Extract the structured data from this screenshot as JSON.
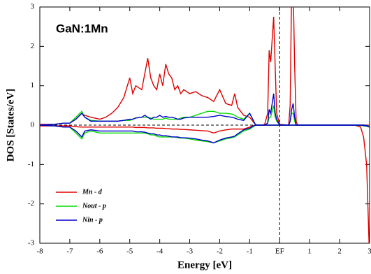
{
  "chart_data": {
    "type": "line",
    "annotation": "GaN:1Mn",
    "xlabel": "Energy [eV]",
    "ylabel": "DOS [States/eV]",
    "x": [
      -8,
      -7.5,
      -7.2,
      -7,
      -6.8,
      -6.6,
      -6.5,
      -6.3,
      -6,
      -5.8,
      -5.6,
      -5.4,
      -5.2,
      -5,
      -4.9,
      -4.8,
      -4.6,
      -4.5,
      -4.4,
      -4.3,
      -4.2,
      -4.1,
      -4,
      -3.9,
      -3.8,
      -3.7,
      -3.6,
      -3.5,
      -3.4,
      -3.3,
      -3.2,
      -3,
      -2.8,
      -2.6,
      -2.4,
      -2.2,
      -2,
      -1.8,
      -1.6,
      -1.5,
      -1.4,
      -1.2,
      -1,
      -0.9,
      -0.8,
      -0.6,
      -0.5,
      -0.4,
      -0.35,
      -0.3,
      -0.2,
      -0.15,
      -0.1,
      0,
      0.3,
      0.35,
      0.4,
      0.45,
      0.5,
      0.55,
      0.6,
      1,
      2,
      2.5,
      2.7,
      2.8,
      2.9,
      2.95,
      3
    ],
    "series": [
      {
        "name": "Mn - d",
        "color": "#e00000",
        "values": [
          0.02,
          0.02,
          0.05,
          0.05,
          0.15,
          0.3,
          0.25,
          0.2,
          0.15,
          0.2,
          0.3,
          0.45,
          0.7,
          1.2,
          0.8,
          1.0,
          0.9,
          1.3,
          1.7,
          1.2,
          1.0,
          0.9,
          1.3,
          1.0,
          1.55,
          1.3,
          1.2,
          0.9,
          1.0,
          0.8,
          0.9,
          0.8,
          0.85,
          0.75,
          0.7,
          0.6,
          0.9,
          0.55,
          0.5,
          0.8,
          0.45,
          0.25,
          0.2,
          0.1,
          0.01,
          0,
          0.02,
          0.3,
          1.9,
          1.6,
          2.75,
          1.5,
          0.3,
          0.02,
          0,
          0.5,
          3.5,
          3.5,
          1.5,
          0.1,
          0,
          0,
          0,
          0,
          0,
          0,
          0,
          0,
          0
        ],
        "values_down": [
          -0.02,
          -0.02,
          -0.02,
          -0.02,
          -0.04,
          -0.05,
          -0.05,
          -0.05,
          -0.05,
          -0.05,
          -0.05,
          -0.05,
          -0.05,
          -0.05,
          -0.05,
          -0.06,
          -0.06,
          -0.06,
          -0.07,
          -0.07,
          -0.07,
          -0.08,
          -0.08,
          -0.08,
          -0.09,
          -0.09,
          -0.1,
          -0.1,
          -0.1,
          -0.11,
          -0.11,
          -0.12,
          -0.13,
          -0.14,
          -0.15,
          -0.2,
          -0.15,
          -0.12,
          -0.1,
          -0.1,
          -0.1,
          -0.1,
          -0.05,
          -0.02,
          0,
          0,
          0,
          0,
          0,
          0,
          0,
          0,
          0,
          0,
          0,
          0,
          0,
          0,
          0,
          0,
          0,
          0,
          0,
          0,
          -0.05,
          -0.3,
          -1.0,
          -2.2,
          -3.5
        ]
      },
      {
        "name": "Nout - p",
        "color": "#00dd00",
        "values": [
          0,
          0.02,
          0.05,
          0.05,
          0.2,
          0.35,
          0.2,
          0.12,
          0.1,
          0.1,
          0.1,
          0.1,
          0.12,
          0.12,
          0.15,
          0.18,
          0.2,
          0.2,
          0.2,
          0.18,
          0.15,
          0.15,
          0.15,
          0.15,
          0.18,
          0.15,
          0.15,
          0.15,
          0.15,
          0.18,
          0.2,
          0.2,
          0.25,
          0.3,
          0.35,
          0.35,
          0.3,
          0.3,
          0.28,
          0.25,
          0.2,
          0.15,
          0.3,
          0.15,
          0,
          0,
          0,
          0.05,
          0.2,
          0.2,
          0.5,
          0.2,
          0.1,
          0,
          0,
          0.1,
          0.3,
          0.3,
          0.1,
          0,
          0,
          0,
          0,
          0,
          0,
          0,
          -0.01,
          -0.02,
          -0.03
        ],
        "values_down": [
          0,
          -0.02,
          -0.05,
          -0.05,
          -0.2,
          -0.35,
          -0.2,
          -0.15,
          -0.2,
          -0.2,
          -0.2,
          -0.2,
          -0.2,
          -0.2,
          -0.2,
          -0.2,
          -0.2,
          -0.2,
          -0.22,
          -0.25,
          -0.25,
          -0.28,
          -0.3,
          -0.3,
          -0.3,
          -0.3,
          -0.3,
          -0.3,
          -0.32,
          -0.33,
          -0.33,
          -0.35,
          -0.38,
          -0.4,
          -0.42,
          -0.45,
          -0.4,
          -0.35,
          -0.32,
          -0.3,
          -0.25,
          -0.15,
          -0.1,
          -0.05,
          0,
          0,
          0,
          0,
          0,
          0,
          0,
          0,
          0,
          0,
          0,
          0,
          0,
          0,
          0,
          0,
          0,
          0,
          0,
          0,
          -0.01,
          -0.02,
          -0.03,
          -0.04,
          -0.05
        ]
      },
      {
        "name": "Nin - p",
        "color": "#0000cc",
        "values": [
          0,
          0.02,
          0.05,
          0.05,
          0.15,
          0.3,
          0.2,
          0.1,
          0.1,
          0.1,
          0.1,
          0.1,
          0.12,
          0.15,
          0.15,
          0.18,
          0.2,
          0.25,
          0.2,
          0.15,
          0.2,
          0.2,
          0.25,
          0.2,
          0.22,
          0.2,
          0.2,
          0.18,
          0.15,
          0.15,
          0.18,
          0.2,
          0.2,
          0.2,
          0.2,
          0.22,
          0.25,
          0.22,
          0.2,
          0.18,
          0.15,
          0.12,
          0.3,
          0.15,
          0,
          0,
          0,
          0.05,
          0.4,
          0.3,
          0.8,
          0.3,
          0.15,
          0,
          0,
          0.1,
          0.4,
          0.55,
          0.2,
          0,
          0,
          0,
          0,
          0,
          0,
          0,
          -0.01,
          -0.03,
          -0.05
        ],
        "values_down": [
          0,
          -0.02,
          -0.05,
          -0.05,
          -0.15,
          -0.3,
          -0.15,
          -0.12,
          -0.15,
          -0.15,
          -0.15,
          -0.15,
          -0.15,
          -0.15,
          -0.15,
          -0.17,
          -0.17,
          -0.18,
          -0.2,
          -0.22,
          -0.22,
          -0.25,
          -0.25,
          -0.27,
          -0.27,
          -0.28,
          -0.3,
          -0.3,
          -0.3,
          -0.32,
          -0.32,
          -0.33,
          -0.35,
          -0.38,
          -0.4,
          -0.45,
          -0.38,
          -0.33,
          -0.3,
          -0.28,
          -0.22,
          -0.12,
          -0.08,
          -0.03,
          0,
          0,
          0,
          0,
          0,
          0,
          0,
          0,
          0,
          0,
          0,
          0,
          0,
          0,
          0,
          0,
          0,
          0,
          0,
          0,
          0,
          -0.01,
          -0.02,
          -0.04,
          -0.05
        ]
      }
    ],
    "xlim": [
      -8,
      3
    ],
    "ylim": [
      -3,
      3
    ],
    "xticks": [
      -8,
      -7,
      -6,
      -5,
      -4,
      -3,
      -2,
      -1,
      {
        "value": 0,
        "label": "EF"
      },
      1,
      2,
      3
    ],
    "yticks": [
      -3,
      -2,
      -1,
      0,
      1,
      2,
      3
    ],
    "hline": 0,
    "vline": 0,
    "legend": "lower left"
  }
}
